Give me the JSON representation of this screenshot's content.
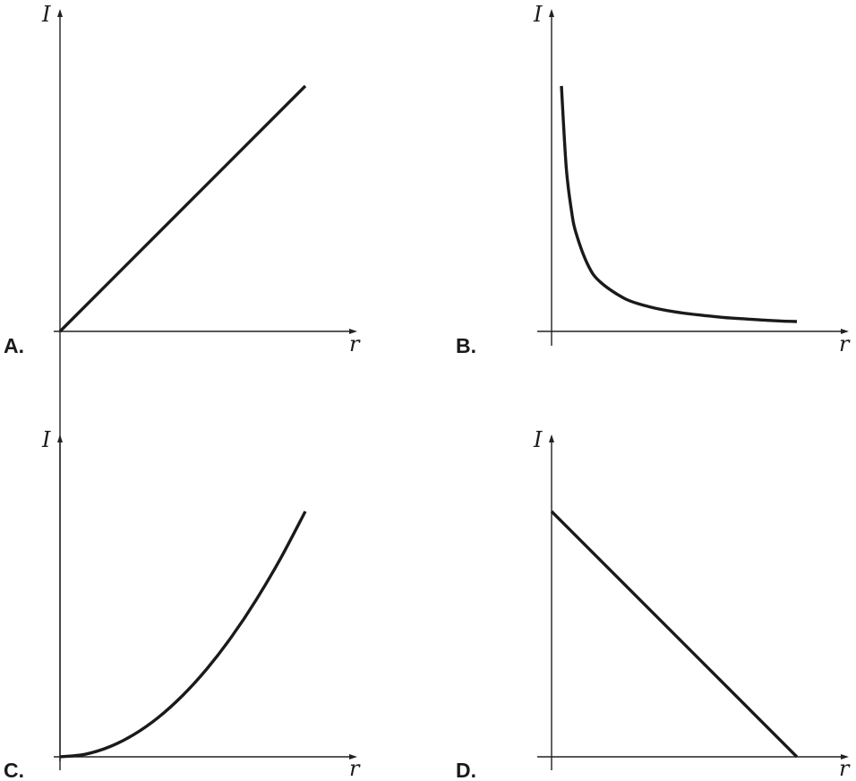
{
  "chart_data": [
    {
      "panel_label": "A.",
      "type": "line",
      "xlabel": "r",
      "ylabel": "I",
      "xlim": [
        0,
        1.2
      ],
      "ylim": [
        0,
        1.1
      ],
      "x": [
        0,
        1
      ],
      "y": [
        0,
        1
      ]
    },
    {
      "panel_label": "B.",
      "type": "line",
      "xlabel": "r",
      "ylabel": "I",
      "xlim": [
        0,
        1.2
      ],
      "ylim": [
        0,
        1.1
      ],
      "x": [
        0.04,
        0.06,
        0.08,
        0.1,
        0.15,
        0.2,
        0.3,
        0.4,
        0.5,
        0.6,
        0.7,
        0.8,
        0.9,
        1.0
      ],
      "y": [
        1.0,
        0.667,
        0.5,
        0.4,
        0.267,
        0.2,
        0.133,
        0.1,
        0.08,
        0.067,
        0.057,
        0.05,
        0.044,
        0.04
      ]
    },
    {
      "panel_label": "C.",
      "type": "line",
      "xlabel": "r",
      "ylabel": "I",
      "xlim": [
        0,
        1.2
      ],
      "ylim": [
        0,
        1.1
      ],
      "x": [
        0,
        0.1,
        0.2,
        0.3,
        0.4,
        0.5,
        0.6,
        0.7,
        0.8,
        0.9,
        1.0
      ],
      "y": [
        0,
        0.01,
        0.04,
        0.09,
        0.16,
        0.25,
        0.36,
        0.49,
        0.64,
        0.81,
        1.0
      ]
    },
    {
      "panel_label": "D.",
      "type": "line",
      "xlabel": "r",
      "ylabel": "I",
      "xlim": [
        0,
        1.2
      ],
      "ylim": [
        0,
        1.1
      ],
      "x": [
        0,
        1
      ],
      "y": [
        1,
        0
      ]
    }
  ]
}
